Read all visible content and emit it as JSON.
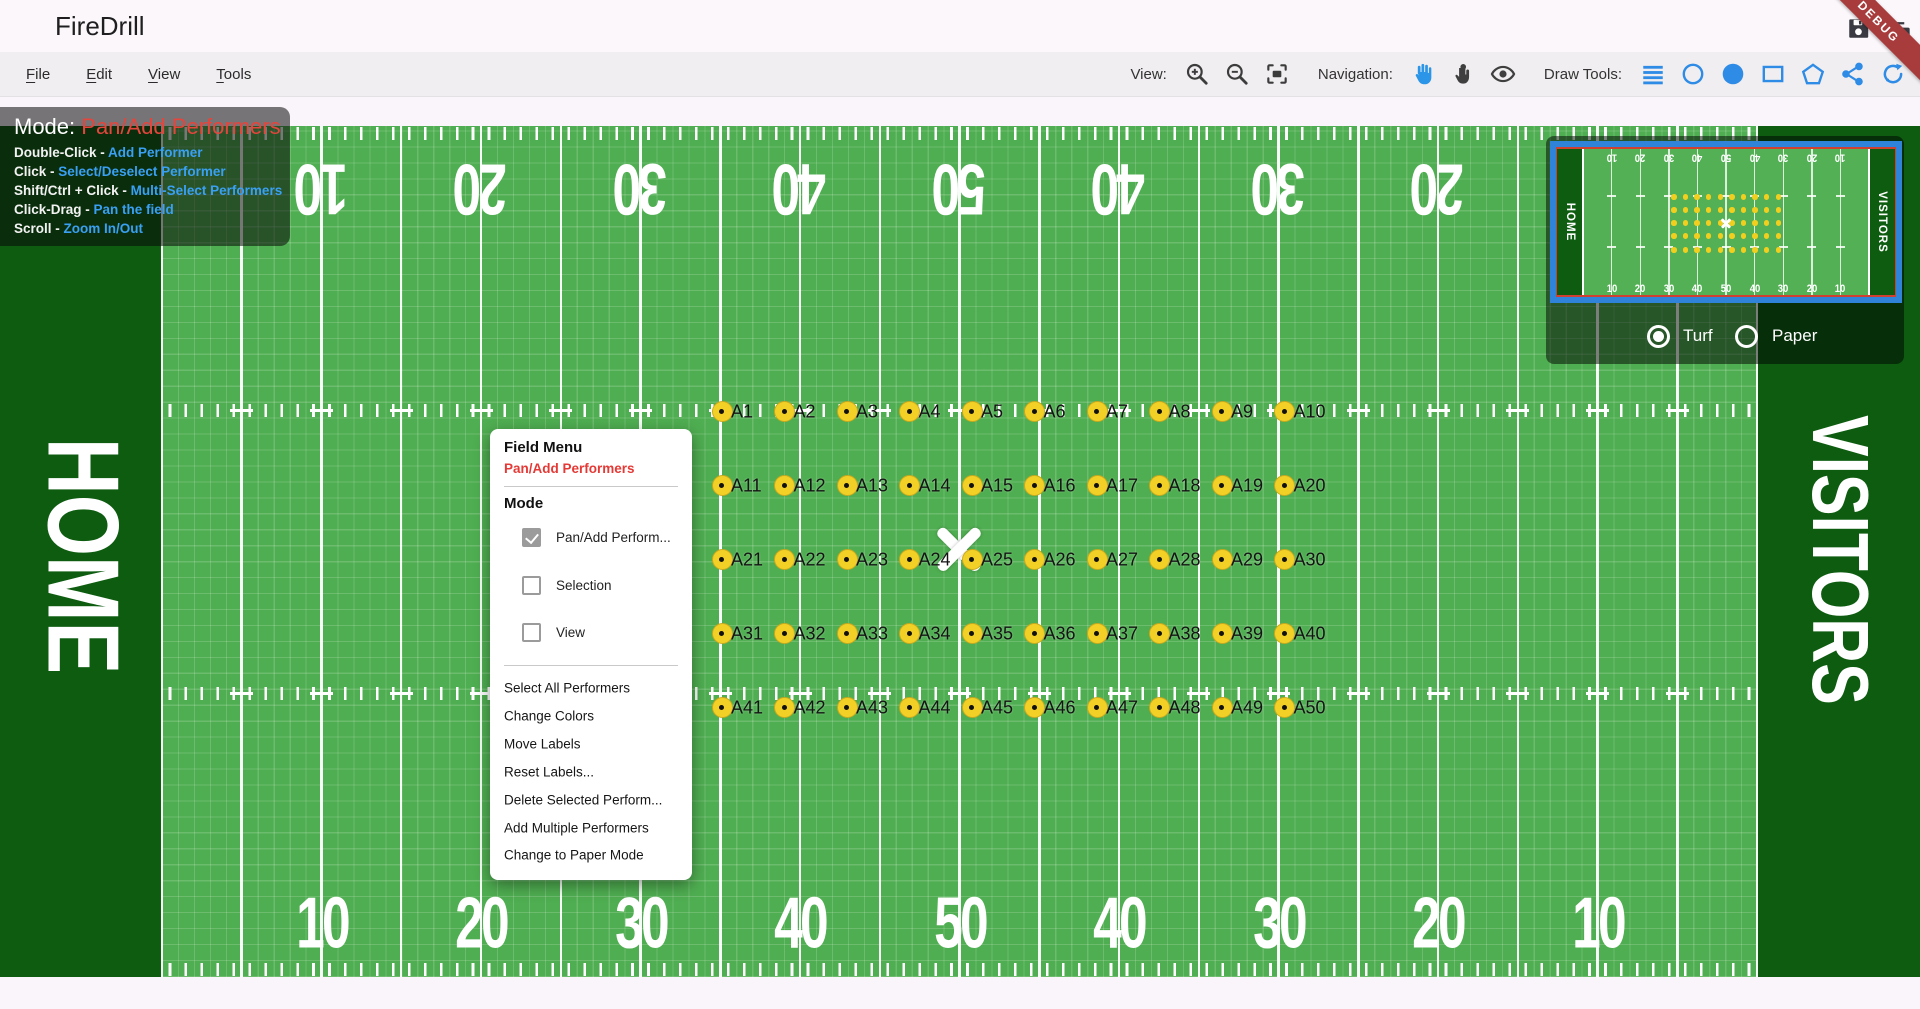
{
  "window": {
    "title": "FireDrill",
    "ribbon": "DEBUG"
  },
  "menu_bar": {
    "menus": [
      "File",
      "Edit",
      "View",
      "Tools"
    ],
    "view_label": "View:",
    "navigation_label": "Navigation:",
    "draw_tools_label": "Draw Tools:"
  },
  "mode_overlay": {
    "label": "Mode: ",
    "value": "Pan/Add Performers",
    "separator": " - ",
    "shortcuts": [
      {
        "key": "Double-Click",
        "action": "Add Performer"
      },
      {
        "key": "Click",
        "action": "Select/Deselect Performer"
      },
      {
        "key": "Shift/Ctrl + Click",
        "action": "Multi-Select Performers"
      },
      {
        "key": "Click-Drag",
        "action": "Pan the field"
      },
      {
        "key": "Scroll",
        "action": "Zoom In/Out"
      }
    ]
  },
  "field": {
    "home_label": "HOME",
    "visitors_label": "VISITORS",
    "yard_numbers": [
      "10",
      "20",
      "30",
      "40",
      "50",
      "40",
      "30",
      "20",
      "10"
    ]
  },
  "performers": {
    "labels": [
      "A1",
      "A2",
      "A3",
      "A4",
      "A5",
      "A6",
      "A7",
      "A8",
      "A9",
      "A10",
      "A11",
      "A12",
      "A13",
      "A14",
      "A15",
      "A16",
      "A17",
      "A18",
      "A19",
      "A20",
      "A21",
      "A22",
      "A23",
      "A24",
      "A25",
      "A26",
      "A27",
      "A28",
      "A29",
      "A30",
      "A31",
      "A32",
      "A33",
      "A34",
      "A35",
      "A36",
      "A37",
      "A38",
      "A39",
      "A40",
      "A41",
      "A42",
      "A43",
      "A44",
      "A45",
      "A46",
      "A47",
      "A48",
      "A49",
      "A50"
    ]
  },
  "field_menu": {
    "title": "Field Menu",
    "subtitle": "Pan/Add Performers",
    "section_label": "Mode",
    "modes": [
      {
        "label": "Pan/Add Perform...",
        "checked": true
      },
      {
        "label": "Selection",
        "checked": false
      },
      {
        "label": "View",
        "checked": false
      }
    ],
    "actions": [
      "Select All Performers",
      "Change Colors",
      "Move Labels",
      "Reset Labels...",
      "Delete Selected Perform...",
      "Add Multiple Performers",
      "Change to Paper Mode"
    ]
  },
  "minimap": {
    "home_label": "HOME",
    "visitors_label": "VISITORS",
    "yard_numbers": [
      "10",
      "20",
      "30",
      "40",
      "50",
      "40",
      "30",
      "20",
      "10"
    ],
    "surface_options": [
      {
        "label": "Turf",
        "selected": true
      },
      {
        "label": "Paper",
        "selected": false
      }
    ]
  },
  "colors": {
    "field_green": "#4fae51",
    "endzone_green": "#0d5c10",
    "accent_blue": "#2e8be6",
    "mode_red": "#e4453c",
    "link_blue": "#39a0f4",
    "performer_yellow": "#f2d026",
    "minimap_border_blue": "#2f83d8",
    "minimap_border_red": "#d04030",
    "ribbon_red": "#a83c3c"
  }
}
